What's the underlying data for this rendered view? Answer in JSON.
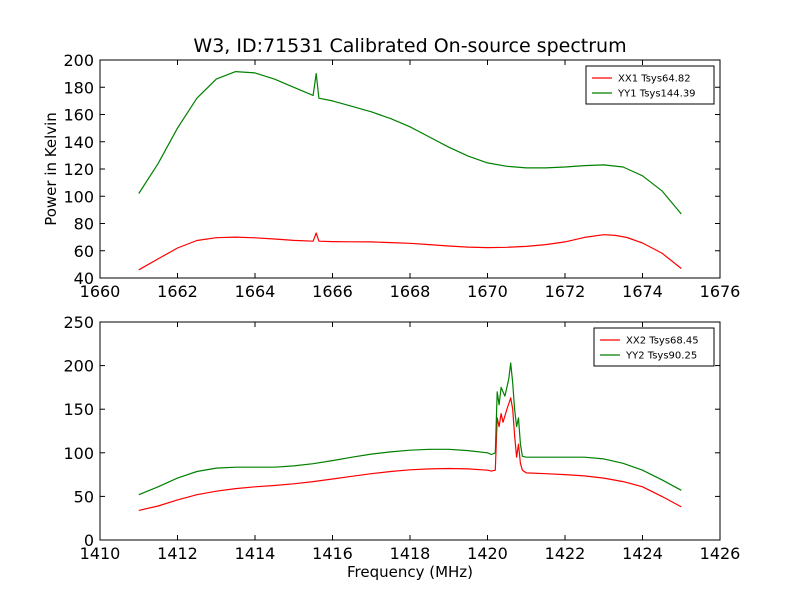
{
  "figure": {
    "title": "W3, ID:71531 Calibrated On-source spectrum",
    "xlabel": "Frequency (MHz)",
    "ylabel": "Power in Kelvin"
  },
  "colors": {
    "red": "#ff0000",
    "green": "#008000",
    "axes": "#000000"
  },
  "chart_data": [
    {
      "type": "line",
      "title": "W3, ID:71531 Calibrated On-source spectrum",
      "xlabel": "",
      "ylabel": "Power in Kelvin",
      "xlim": [
        1660,
        1676
      ],
      "ylim": [
        40,
        200
      ],
      "xticks": [
        "1660",
        "1662",
        "1664",
        "1666",
        "1668",
        "1670",
        "1672",
        "1674",
        "1676"
      ],
      "yticks": [
        "40",
        "60",
        "80",
        "100",
        "120",
        "140",
        "160",
        "180",
        "200"
      ],
      "grid": false,
      "legend_position": "top-right",
      "series": [
        {
          "name": "XX1 Tsys64.82",
          "color": "#ff0000",
          "points": [
            [
              1661.0,
              46
            ],
            [
              1661.5,
              54
            ],
            [
              1662.0,
              62
            ],
            [
              1662.5,
              67.5
            ],
            [
              1663.0,
              69.6
            ],
            [
              1663.5,
              70
            ],
            [
              1664.0,
              69.5
            ],
            [
              1664.5,
              68.6
            ],
            [
              1665.0,
              67.6
            ],
            [
              1665.5,
              67
            ],
            [
              1665.58,
              73
            ],
            [
              1665.65,
              67
            ],
            [
              1666.0,
              66.7
            ],
            [
              1666.5,
              66.6
            ],
            [
              1667.0,
              66.5
            ],
            [
              1667.5,
              66
            ],
            [
              1668.0,
              65.5
            ],
            [
              1668.5,
              64.5
            ],
            [
              1669.0,
              63.5
            ],
            [
              1669.5,
              62.7
            ],
            [
              1670.0,
              62.3
            ],
            [
              1670.5,
              62.5
            ],
            [
              1671.0,
              63.2
            ],
            [
              1671.5,
              64.5
            ],
            [
              1672.0,
              66.5
            ],
            [
              1672.5,
              69.8
            ],
            [
              1673.0,
              71.8
            ],
            [
              1673.3,
              71.3
            ],
            [
              1673.6,
              69.7
            ],
            [
              1674.0,
              65.7
            ],
            [
              1674.5,
              58.3
            ],
            [
              1675.0,
              47
            ]
          ]
        },
        {
          "name": "YY1 Tsys144.39",
          "color": "#008000",
          "points": [
            [
              1661.0,
              102
            ],
            [
              1661.5,
              124
            ],
            [
              1662.0,
              150
            ],
            [
              1662.5,
              172
            ],
            [
              1663.0,
              186
            ],
            [
              1663.5,
              191.5
            ],
            [
              1664.0,
              190.5
            ],
            [
              1664.5,
              186
            ],
            [
              1665.0,
              180
            ],
            [
              1665.5,
              174
            ],
            [
              1665.58,
              190
            ],
            [
              1665.65,
              172
            ],
            [
              1666.0,
              170
            ],
            [
              1666.5,
              166
            ],
            [
              1667.0,
              162
            ],
            [
              1667.5,
              157
            ],
            [
              1668.0,
              151
            ],
            [
              1668.5,
              143.5
            ],
            [
              1669.0,
              136
            ],
            [
              1669.5,
              129.5
            ],
            [
              1670.0,
              124.5
            ],
            [
              1670.5,
              122
            ],
            [
              1671.0,
              120.8
            ],
            [
              1671.5,
              120.8
            ],
            [
              1672.0,
              121.5
            ],
            [
              1672.5,
              122.5
            ],
            [
              1673.0,
              123
            ],
            [
              1673.5,
              121.5
            ],
            [
              1674.0,
              115
            ],
            [
              1674.5,
              104
            ],
            [
              1675.0,
              87
            ]
          ]
        }
      ]
    },
    {
      "type": "line",
      "title": "",
      "xlabel": "Frequency (MHz)",
      "ylabel": "",
      "xlim": [
        1410,
        1426
      ],
      "ylim": [
        0,
        250
      ],
      "xticks": [
        "1410",
        "1412",
        "1414",
        "1416",
        "1418",
        "1420",
        "1422",
        "1424",
        "1426"
      ],
      "yticks": [
        "0",
        "50",
        "100",
        "150",
        "200",
        "250"
      ],
      "grid": false,
      "legend_position": "top-right",
      "series": [
        {
          "name": "XX2 Tsys68.45",
          "color": "#ff0000",
          "points": [
            [
              1411.0,
              34
            ],
            [
              1411.5,
              39
            ],
            [
              1412.0,
              46
            ],
            [
              1412.5,
              52
            ],
            [
              1413.0,
              56
            ],
            [
              1413.5,
              59
            ],
            [
              1414.0,
              61
            ],
            [
              1414.5,
              62.5
            ],
            [
              1415.0,
              64.5
            ],
            [
              1415.5,
              67
            ],
            [
              1416.0,
              70
            ],
            [
              1416.5,
              73
            ],
            [
              1417.0,
              76
            ],
            [
              1417.5,
              78.5
            ],
            [
              1418.0,
              80.5
            ],
            [
              1418.5,
              81.5
            ],
            [
              1419.0,
              82
            ],
            [
              1419.5,
              81.5
            ],
            [
              1420.0,
              80
            ],
            [
              1420.1,
              79
            ],
            [
              1420.2,
              80
            ],
            [
              1420.25,
              140
            ],
            [
              1420.3,
              130
            ],
            [
              1420.35,
              145
            ],
            [
              1420.4,
              135
            ],
            [
              1420.5,
              150
            ],
            [
              1420.6,
              163
            ],
            [
              1420.65,
              150
            ],
            [
              1420.7,
              120
            ],
            [
              1420.75,
              95
            ],
            [
              1420.8,
              110
            ],
            [
              1420.85,
              88
            ],
            [
              1420.9,
              80
            ],
            [
              1421.0,
              77
            ],
            [
              1421.5,
              76
            ],
            [
              1422.0,
              75
            ],
            [
              1422.5,
              73.5
            ],
            [
              1423.0,
              71
            ],
            [
              1423.5,
              67
            ],
            [
              1424.0,
              61
            ],
            [
              1424.5,
              50
            ],
            [
              1425.0,
              38
            ]
          ]
        },
        {
          "name": "YY2 Tsys90.25",
          "color": "#008000",
          "points": [
            [
              1411.0,
              52
            ],
            [
              1411.5,
              61
            ],
            [
              1412.0,
              71
            ],
            [
              1412.5,
              78.5
            ],
            [
              1413.0,
              82.5
            ],
            [
              1413.5,
              83.5
            ],
            [
              1414.0,
              83.5
            ],
            [
              1414.5,
              83.5
            ],
            [
              1415.0,
              85
            ],
            [
              1415.5,
              87.5
            ],
            [
              1416.0,
              91
            ],
            [
              1416.5,
              95
            ],
            [
              1417.0,
              98.5
            ],
            [
              1417.5,
              101
            ],
            [
              1418.0,
              103
            ],
            [
              1418.5,
              104
            ],
            [
              1419.0,
              104
            ],
            [
              1419.5,
              102.5
            ],
            [
              1420.0,
              100
            ],
            [
              1420.1,
              98
            ],
            [
              1420.2,
              100
            ],
            [
              1420.25,
              170
            ],
            [
              1420.3,
              155
            ],
            [
              1420.35,
              175
            ],
            [
              1420.45,
              165
            ],
            [
              1420.55,
              185
            ],
            [
              1420.6,
              203
            ],
            [
              1420.65,
              180
            ],
            [
              1420.7,
              150
            ],
            [
              1420.75,
              130
            ],
            [
              1420.8,
              140
            ],
            [
              1420.85,
              110
            ],
            [
              1420.9,
              96
            ],
            [
              1421.0,
              95
            ],
            [
              1421.5,
              95
            ],
            [
              1422.0,
              95
            ],
            [
              1422.5,
              95
            ],
            [
              1423.0,
              93
            ],
            [
              1423.5,
              88
            ],
            [
              1424.0,
              80
            ],
            [
              1424.5,
              69
            ],
            [
              1425.0,
              57
            ]
          ]
        }
      ]
    }
  ]
}
